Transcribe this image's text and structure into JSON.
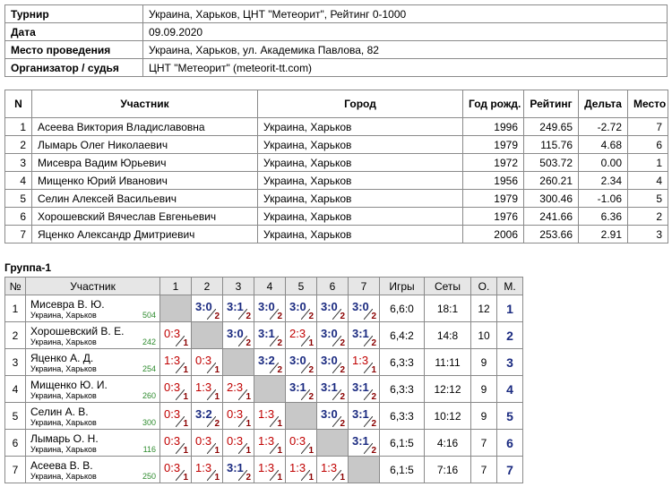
{
  "info": [
    {
      "label": "Турнир",
      "value": "Украина, Харьков, ЦНТ \"Метеорит\", Рейтинг 0-1000"
    },
    {
      "label": "Дата",
      "value": "09.09.2020"
    },
    {
      "label": "Место проведения",
      "value": "Украина, Харьков, ул. Академика Павлова, 82"
    },
    {
      "label": "Организатор / судья",
      "value": "ЦНТ \"Метеорит\" (meteorit-tt.com)"
    }
  ],
  "participants": {
    "columns": [
      "N",
      "Участник",
      "Город",
      "Год рожд.",
      "Рейтинг",
      "Дельта",
      "Место"
    ],
    "rows": [
      [
        "1",
        "Асеева Виктория Владиславовна",
        "Украина, Харьков",
        "1996",
        "249.65",
        "-2.72",
        "7"
      ],
      [
        "2",
        "Лымарь Олег Николаевич",
        "Украина, Харьков",
        "1979",
        "115.76",
        "4.68",
        "6"
      ],
      [
        "3",
        "Мисевра Вадим Юрьевич",
        "Украина, Харьков",
        "1972",
        "503.72",
        "0.00",
        "1"
      ],
      [
        "4",
        "Мищенко Юрий Иванович",
        "Украина, Харьков",
        "1956",
        "260.21",
        "2.34",
        "4"
      ],
      [
        "5",
        "Селин Алексей Васильевич",
        "Украина, Харьков",
        "1979",
        "300.46",
        "-1.06",
        "5"
      ],
      [
        "6",
        "Хорошевский Вячеслав Евгеньевич",
        "Украина, Харьков",
        "1976",
        "241.66",
        "6.36",
        "2"
      ],
      [
        "7",
        "Яценко Александр Дмитриевич",
        "Украина, Харьков",
        "2006",
        "253.66",
        "2.91",
        "3"
      ]
    ]
  },
  "group": {
    "title": "Группа-1",
    "columns": [
      "№",
      "Участник",
      "1",
      "2",
      "3",
      "4",
      "5",
      "6",
      "7",
      "Игры",
      "Сеты",
      "О.",
      "М."
    ],
    "rows": [
      {
        "n": 1,
        "name": "Мисевра В. Ю.",
        "city": "Украина, Харьков",
        "rating": 504,
        "results": [
          null,
          {
            "score": "3:0",
            "points": 2
          },
          {
            "score": "3:1",
            "points": 2
          },
          {
            "score": "3:0",
            "points": 2
          },
          {
            "score": "3:0",
            "points": 2
          },
          {
            "score": "3:0",
            "points": 2
          },
          {
            "score": "3:0",
            "points": 2
          }
        ],
        "games": "6,6:0",
        "sets": "18:1",
        "score": 12,
        "place": 1
      },
      {
        "n": 2,
        "name": "Хорошевский В. Е.",
        "city": "Украина, Харьков",
        "rating": 242,
        "results": [
          {
            "score": "0:3",
            "points": 1
          },
          null,
          {
            "score": "3:0",
            "points": 2
          },
          {
            "score": "3:1",
            "points": 2
          },
          {
            "score": "2:3",
            "points": 1
          },
          {
            "score": "3:0",
            "points": 2
          },
          {
            "score": "3:1",
            "points": 2
          }
        ],
        "games": "6,4:2",
        "sets": "14:8",
        "score": 10,
        "place": 2
      },
      {
        "n": 3,
        "name": "Яценко А. Д.",
        "city": "Украина, Харьков",
        "rating": 254,
        "results": [
          {
            "score": "1:3",
            "points": 1
          },
          {
            "score": "0:3",
            "points": 1
          },
          null,
          {
            "score": "3:2",
            "points": 2
          },
          {
            "score": "3:0",
            "points": 2
          },
          {
            "score": "3:0",
            "points": 2
          },
          {
            "score": "1:3",
            "points": 1
          }
        ],
        "games": "6,3:3",
        "sets": "11:11",
        "score": 9,
        "place": 3
      },
      {
        "n": 4,
        "name": "Мищенко Ю. И.",
        "city": "Украина, Харьков",
        "rating": 260,
        "results": [
          {
            "score": "0:3",
            "points": 1
          },
          {
            "score": "1:3",
            "points": 1
          },
          {
            "score": "2:3",
            "points": 1
          },
          null,
          {
            "score": "3:1",
            "points": 2
          },
          {
            "score": "3:1",
            "points": 2
          },
          {
            "score": "3:1",
            "points": 2
          }
        ],
        "games": "6,3:3",
        "sets": "12:12",
        "score": 9,
        "place": 4
      },
      {
        "n": 5,
        "name": "Селин А. В.",
        "city": "Украина, Харьков",
        "rating": 300,
        "results": [
          {
            "score": "0:3",
            "points": 1
          },
          {
            "score": "3:2",
            "points": 2
          },
          {
            "score": "0:3",
            "points": 1
          },
          {
            "score": "1:3",
            "points": 1
          },
          null,
          {
            "score": "3:0",
            "points": 2
          },
          {
            "score": "3:1",
            "points": 2
          }
        ],
        "games": "6,3:3",
        "sets": "10:12",
        "score": 9,
        "place": 5
      },
      {
        "n": 6,
        "name": "Лымарь О. Н.",
        "city": "Украина, Харьков",
        "rating": 116,
        "results": [
          {
            "score": "0:3",
            "points": 1
          },
          {
            "score": "0:3",
            "points": 1
          },
          {
            "score": "0:3",
            "points": 1
          },
          {
            "score": "1:3",
            "points": 1
          },
          {
            "score": "0:3",
            "points": 1
          },
          null,
          {
            "score": "3:1",
            "points": 2
          }
        ],
        "games": "6,1:5",
        "sets": "4:16",
        "score": 7,
        "place": 6
      },
      {
        "n": 7,
        "name": "Асеева В. В.",
        "city": "Украина, Харьков",
        "rating": 250,
        "results": [
          {
            "score": "0:3",
            "points": 1
          },
          {
            "score": "1:3",
            "points": 1
          },
          {
            "score": "3:1",
            "points": 2
          },
          {
            "score": "1:3",
            "points": 1
          },
          {
            "score": "1:3",
            "points": 1
          },
          {
            "score": "1:3",
            "points": 1
          },
          null
        ],
        "games": "6,1:5",
        "sets": "7:16",
        "score": 7,
        "place": 7
      }
    ]
  }
}
